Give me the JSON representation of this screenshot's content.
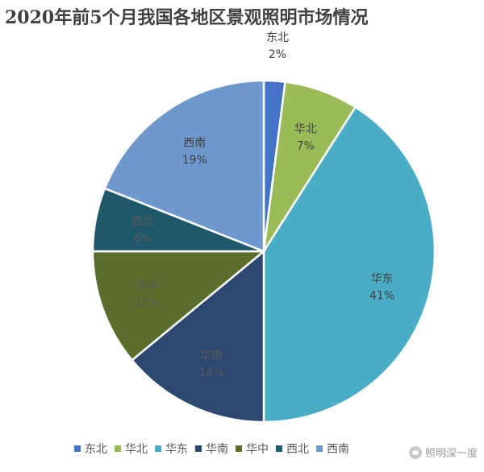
{
  "chart_data": {
    "type": "pie",
    "title": "2020年前5个月我国各地区景观照明市场情况",
    "slices": [
      {
        "name": "东北",
        "value": 2,
        "label": "2%",
        "color": "#4472C4"
      },
      {
        "name": "华北",
        "value": 7,
        "label": "7%",
        "color": "#9BBB59"
      },
      {
        "name": "华东",
        "value": 41,
        "label": "41%",
        "color": "#4BACC6"
      },
      {
        "name": "华南",
        "value": 14,
        "label": "14%",
        "color": "#2C4770"
      },
      {
        "name": "华中",
        "value": 11,
        "label": "11%",
        "color": "#5A6E2B"
      },
      {
        "name": "西北",
        "value": 6,
        "label": "6%",
        "color": "#1F5868"
      },
      {
        "name": "西南",
        "value": 19,
        "label": "19%",
        "color": "#6F98CD"
      }
    ],
    "legend_position": "bottom",
    "start_angle": "top",
    "direction": "clockwise"
  },
  "watermark": {
    "text": "照明深一度"
  }
}
